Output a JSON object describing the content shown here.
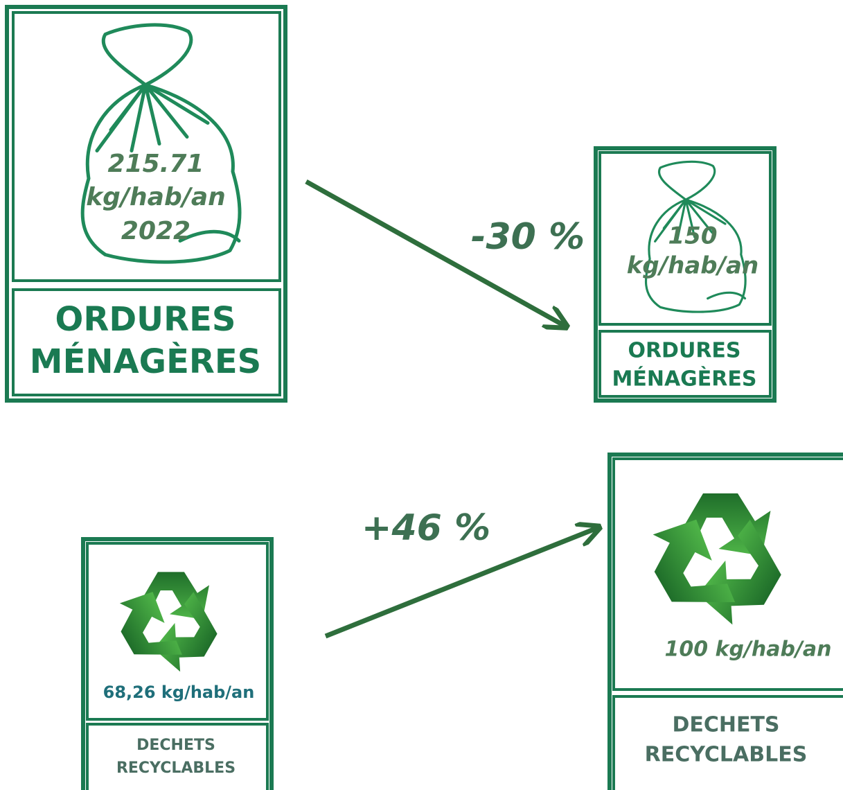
{
  "signs": [
    {
      "amount": [
        "215.71",
        "kg/hab/an",
        "2022"
      ],
      "title": [
        "ORDURES",
        "MÉNAGÈRES"
      ]
    },
    {
      "amount": [
        "150",
        "kg/hab/an"
      ],
      "title": [
        "ORDURES",
        "MÉNAGÈRES"
      ]
    },
    {
      "amount": [
        "68,26 kg/hab/an"
      ],
      "title": [
        "DECHETS",
        "RECYCLABLES"
      ]
    },
    {
      "amount": [
        "100 kg/hab/an"
      ],
      "title": [
        "DECHETS",
        "RECYCLABLES"
      ]
    }
  ],
  "arrows": [
    {
      "label": "-30 %"
    },
    {
      "label": "+46 %"
    }
  ]
}
